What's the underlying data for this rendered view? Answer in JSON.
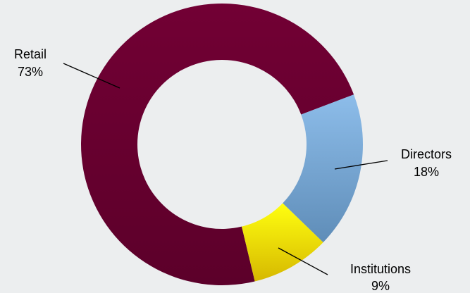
{
  "chart_data": {
    "type": "donut",
    "categories": [
      "Retail",
      "Directors",
      "Institutions"
    ],
    "values": [
      73,
      18,
      9
    ],
    "value_labels": [
      "73%",
      "18%",
      "9%"
    ],
    "colors": [
      "#6b0032",
      "#7fb0e0",
      "#f2e600"
    ]
  }
}
